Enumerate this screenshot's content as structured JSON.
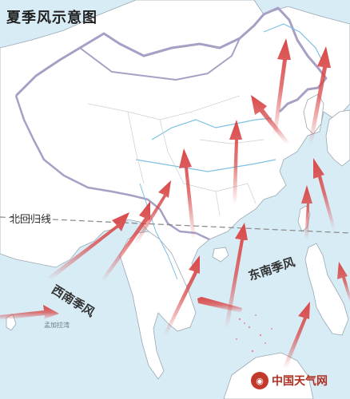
{
  "title": "夏季风示意图",
  "tropic_label": "北回归线",
  "southwest_monsoon_label": "西南季风",
  "southeast_monsoon_label": "东南季风",
  "bay_label": "孟加拉湾",
  "logo_text": "中国天气网",
  "logo_icon": "weather-logo-icon",
  "colors": {
    "sea": "#d8ecf6",
    "land": "#ffffff",
    "border": "#a7a0c4",
    "arrow": "#d94848",
    "river": "#7ec0e4",
    "tropic": "#888888"
  }
}
